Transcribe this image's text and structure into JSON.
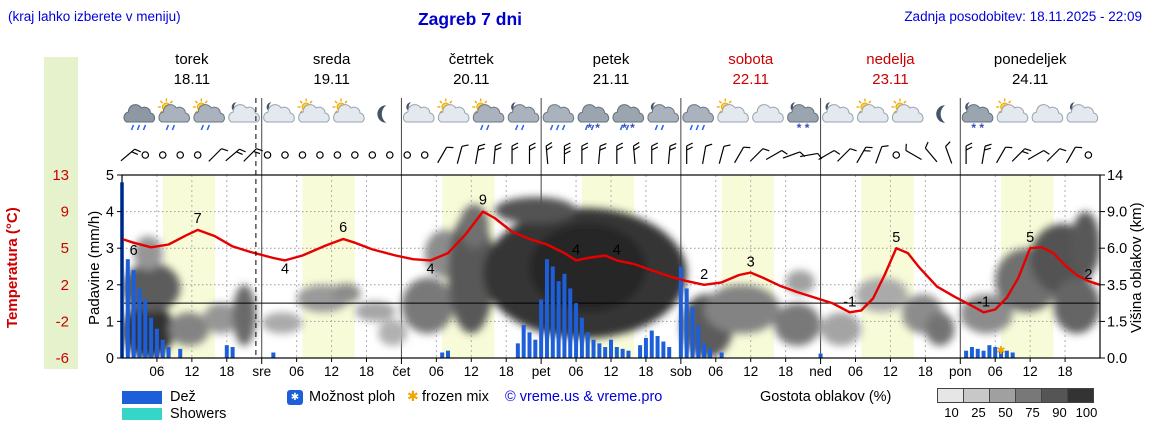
{
  "header": {
    "note": "(kraj lahko izberete v meniju)",
    "title": "Zagreb 7 dni",
    "updated": "Zadnja posodobitev: 18.11.2025 - 22:09"
  },
  "days": [
    {
      "name": "torek",
      "date": "18.11",
      "color": "#000000",
      "abbr": ""
    },
    {
      "name": "sreda",
      "date": "19.11",
      "color": "#000000",
      "abbr": "sre"
    },
    {
      "name": "četrtek",
      "date": "20.11",
      "color": "#000000",
      "abbr": "čet"
    },
    {
      "name": "petek",
      "date": "21.11",
      "color": "#000000",
      "abbr": "pet"
    },
    {
      "name": "sobota",
      "date": "22.11",
      "color": "#cc0000",
      "abbr": "sob"
    },
    {
      "name": "nedelja",
      "date": "23.11",
      "color": "#cc0000",
      "abbr": "ned"
    },
    {
      "name": "ponedeljek",
      "date": "24.11",
      "color": "#000000",
      "abbr": "pon"
    }
  ],
  "axes": {
    "temp_label": "Temperatura (°C)",
    "temp_ticks": [
      "13",
      "9",
      "5",
      "2",
      "-2",
      "-6"
    ],
    "precip_label": "Padavine (mm/h)",
    "precip_ticks": [
      "5",
      "4",
      "3",
      "2",
      "1",
      "0"
    ],
    "cloud_label": "Višina oblakov (km)",
    "cloud_ticks": [
      "14",
      "9.0",
      "6.0",
      "3.5",
      "1.5",
      "0.0"
    ],
    "hour_ticks": [
      "06",
      "12",
      "18"
    ]
  },
  "legend": {
    "rain": "Dež",
    "showers": "Showers",
    "chance": "Možnost ploh",
    "chance_icon": "✱",
    "frozen": "frozen mix",
    "frozen_icon": "✱",
    "copyright": "© vreme.us & vreme.pro",
    "cloud_density": "Gostota oblakov (%)",
    "density_labels": [
      "10",
      "25",
      "50",
      "75",
      "90",
      "100"
    ],
    "density_colors": [
      "#e6e6e6",
      "#c8c8c8",
      "#a0a0a0",
      "#787878",
      "#555555",
      "#333333"
    ]
  },
  "colors": {
    "accent_blue": "#0000cc",
    "temp_line": "#e60000",
    "rain": "#1d5fd9",
    "showers": "#35d6c8",
    "frozen": "#f0a500",
    "daylight_band": "#f8fbd8",
    "weekend_red": "#cc0000",
    "axis_band_green": "#e6f2cc"
  },
  "chart_data": {
    "type": "line",
    "subtype": "meteogram: temperature line + precipitation bars + cloud density shading",
    "title": "Zagreb 7 dni",
    "x_unit": "hours from 18.11 00:00 (7 days, 0–168 h)",
    "temp_axis_ticks": [
      13,
      9,
      5,
      2,
      -2,
      -6
    ],
    "precip_axis_ticks": [
      5,
      4,
      3,
      2,
      1,
      0
    ],
    "cloud_axis_ticks": [
      14,
      9,
      6,
      3.5,
      1.5,
      0
    ],
    "current_time_hour": 23,
    "daylight_bands": [
      [
        7,
        16
      ],
      [
        31,
        40
      ],
      [
        55,
        64
      ],
      [
        79,
        88
      ],
      [
        103,
        112
      ],
      [
        127,
        136
      ],
      [
        151,
        160
      ]
    ],
    "temperature": {
      "points": [
        [
          0,
          6
        ],
        [
          2,
          5.6
        ],
        [
          5,
          5.1
        ],
        [
          8,
          5.4
        ],
        [
          11,
          6.4
        ],
        [
          13,
          7
        ],
        [
          16,
          6.3
        ],
        [
          19,
          5.2
        ],
        [
          22,
          4.7
        ],
        [
          26,
          4.2
        ],
        [
          28,
          4
        ],
        [
          31,
          4.4
        ],
        [
          35,
          5.3
        ],
        [
          38,
          6
        ],
        [
          40,
          5.6
        ],
        [
          43,
          4.9
        ],
        [
          47,
          4.4
        ],
        [
          50,
          4.1
        ],
        [
          53,
          4
        ],
        [
          56,
          4.6
        ],
        [
          59,
          6.5
        ],
        [
          62,
          9
        ],
        [
          64,
          8.3
        ],
        [
          67,
          6.8
        ],
        [
          70,
          6
        ],
        [
          73,
          5.4
        ],
        [
          76,
          4.6
        ],
        [
          78,
          4
        ],
        [
          80,
          4.2
        ],
        [
          83,
          4.4
        ],
        [
          85,
          4
        ],
        [
          88,
          3.7
        ],
        [
          91,
          3.2
        ],
        [
          94,
          2.7
        ],
        [
          97,
          2.3
        ],
        [
          100,
          2
        ],
        [
          103,
          2.2
        ],
        [
          106,
          2.8
        ],
        [
          108,
          3
        ],
        [
          110,
          2.6
        ],
        [
          113,
          1.9
        ],
        [
          116,
          1.2
        ],
        [
          119,
          0.6
        ],
        [
          122,
          0
        ],
        [
          125,
          -1
        ],
        [
          127,
          -0.8
        ],
        [
          129,
          0.5
        ],
        [
          131,
          2.8
        ],
        [
          133,
          5
        ],
        [
          135,
          4.6
        ],
        [
          137,
          3.4
        ],
        [
          140,
          1.8
        ],
        [
          143,
          0.7
        ],
        [
          146,
          -0.3
        ],
        [
          148,
          -1
        ],
        [
          150,
          -0.7
        ],
        [
          152,
          0.6
        ],
        [
          154,
          2.6
        ],
        [
          156,
          5
        ],
        [
          158,
          5.1
        ],
        [
          160,
          4.6
        ],
        [
          162,
          3.6
        ],
        [
          164,
          2.8
        ],
        [
          166,
          2.3
        ],
        [
          168,
          2
        ]
      ],
      "labels": [
        [
          2,
          6,
          16
        ],
        [
          13,
          7,
          -7
        ],
        [
          28,
          4,
          13
        ],
        [
          38,
          6,
          -7
        ],
        [
          53,
          4,
          13
        ],
        [
          62,
          9,
          -7
        ],
        [
          78,
          4,
          -6
        ],
        [
          85,
          4,
          -6
        ],
        [
          100,
          2,
          -6
        ],
        [
          108,
          3,
          -6
        ],
        [
          125,
          -1,
          -6
        ],
        [
          133,
          5,
          -6
        ],
        [
          148,
          -1,
          -6
        ],
        [
          156,
          5,
          -6
        ],
        [
          166,
          2,
          -6
        ]
      ]
    },
    "precipitation_mm": [
      [
        0,
        4.8
      ],
      [
        1,
        2.7
      ],
      [
        2,
        2.4
      ],
      [
        3,
        1.9
      ],
      [
        4,
        1.6
      ],
      [
        5,
        1.1
      ],
      [
        6,
        0.8
      ],
      [
        7,
        0.5
      ],
      [
        8,
        0.3
      ],
      [
        10,
        0.25
      ],
      [
        18,
        0.35
      ],
      [
        19,
        0.3
      ],
      [
        26,
        0.15
      ],
      [
        55,
        0.15
      ],
      [
        56,
        0.2
      ],
      [
        68,
        0.4
      ],
      [
        69,
        0.9
      ],
      [
        70,
        0.7
      ],
      [
        71,
        0.5
      ],
      [
        72,
        1.6
      ],
      [
        73,
        2.7
      ],
      [
        74,
        2.5
      ],
      [
        75,
        2.1
      ],
      [
        76,
        2.3
      ],
      [
        77,
        1.9
      ],
      [
        78,
        1.5
      ],
      [
        79,
        1.1
      ],
      [
        80,
        0.7
      ],
      [
        81,
        0.5
      ],
      [
        82,
        0.4
      ],
      [
        83,
        0.3
      ],
      [
        84,
        0.5
      ],
      [
        85,
        0.3
      ],
      [
        86,
        0.25
      ],
      [
        87,
        0.2
      ],
      [
        89,
        0.35
      ],
      [
        90,
        0.55
      ],
      [
        91,
        0.75
      ],
      [
        92,
        0.6
      ],
      [
        93,
        0.45
      ],
      [
        94,
        0.3
      ],
      [
        96,
        2.5
      ],
      [
        97,
        1.9
      ],
      [
        98,
        1.4
      ],
      [
        99,
        0.9
      ],
      [
        100,
        0.4
      ],
      [
        101,
        0.25
      ],
      [
        103,
        0.15
      ],
      [
        120,
        0.12
      ],
      [
        145,
        0.2
      ],
      [
        146,
        0.3
      ],
      [
        147,
        0.25
      ],
      [
        148,
        0.2
      ],
      [
        149,
        0.35
      ],
      [
        150,
        0.3
      ],
      [
        151,
        0.25
      ],
      [
        152,
        0.2
      ],
      [
        153,
        0.15
      ]
    ],
    "frozen_mix_markers": [
      151
    ],
    "clouds": [
      {
        "h0": 0,
        "h1": 9,
        "k0": 0,
        "k1": 2.5,
        "d": 92
      },
      {
        "h0": 0,
        "h1": 10,
        "k0": 2,
        "k1": 5,
        "d": 70
      },
      {
        "h0": 2,
        "h1": 7,
        "k0": 4.5,
        "k1": 7,
        "d": 40
      },
      {
        "h0": 8,
        "h1": 15,
        "k0": 0.5,
        "k1": 2,
        "d": 50
      },
      {
        "h0": 14,
        "h1": 20,
        "k0": 1,
        "k1": 2.5,
        "d": 40
      },
      {
        "h0": 19,
        "h1": 23,
        "k0": 0.5,
        "k1": 3.5,
        "d": 62
      },
      {
        "h0": 24,
        "h1": 31,
        "k0": 1,
        "k1": 2,
        "d": 30
      },
      {
        "h0": 30,
        "h1": 39,
        "k0": 2,
        "k1": 3.5,
        "d": 38
      },
      {
        "h0": 36,
        "h1": 41,
        "k0": 2.5,
        "k1": 3.6,
        "d": 45
      },
      {
        "h0": 40,
        "h1": 47,
        "k0": 1.5,
        "k1": 2.6,
        "d": 32
      },
      {
        "h0": 44,
        "h1": 49,
        "k0": 0.5,
        "k1": 1.6,
        "d": 26
      },
      {
        "h0": 48,
        "h1": 57,
        "k0": 1,
        "k1": 4,
        "d": 55
      },
      {
        "h0": 52,
        "h1": 59,
        "k0": 4,
        "k1": 7.5,
        "d": 45
      },
      {
        "h0": 56,
        "h1": 64,
        "k0": 1,
        "k1": 9,
        "d": 72
      },
      {
        "h0": 58,
        "h1": 63,
        "k0": 6,
        "k1": 10,
        "d": 60
      },
      {
        "h0": 62,
        "h1": 97,
        "k0": 0.8,
        "k1": 9.5,
        "d": 90
      },
      {
        "h0": 64,
        "h1": 78,
        "k0": 8,
        "k1": 11,
        "d": 75
      },
      {
        "h0": 70,
        "h1": 90,
        "k0": 2,
        "k1": 8,
        "d": 97
      },
      {
        "h0": 96,
        "h1": 105,
        "k0": 0,
        "k1": 3,
        "d": 70
      },
      {
        "h0": 100,
        "h1": 113,
        "k0": 1,
        "k1": 3.5,
        "d": 50
      },
      {
        "h0": 112,
        "h1": 120,
        "k0": 0.5,
        "k1": 2.5,
        "d": 55
      },
      {
        "h0": 114,
        "h1": 119,
        "k0": 3,
        "k1": 4.5,
        "d": 35
      },
      {
        "h0": 120,
        "h1": 127,
        "k0": 0.5,
        "k1": 2,
        "d": 33
      },
      {
        "h0": 126,
        "h1": 135,
        "k0": 2,
        "k1": 4,
        "d": 30
      },
      {
        "h0": 134,
        "h1": 141,
        "k0": 1,
        "k1": 3,
        "d": 45
      },
      {
        "h0": 138,
        "h1": 143,
        "k0": 0.5,
        "k1": 2,
        "d": 58
      },
      {
        "h0": 144,
        "h1": 153,
        "k0": 1,
        "k1": 3,
        "d": 45
      },
      {
        "h0": 150,
        "h1": 161,
        "k0": 2,
        "k1": 6,
        "d": 60
      },
      {
        "h0": 156,
        "h1": 167,
        "k0": 3,
        "k1": 8,
        "d": 75
      },
      {
        "h0": 160,
        "h1": 168,
        "k0": 1,
        "k1": 4,
        "d": 65
      },
      {
        "h0": 163,
        "h1": 168,
        "k0": 4,
        "k1": 9,
        "d": 72
      }
    ],
    "icons": [
      "heavy-rain",
      "sun-rain",
      "sun-rain",
      "moon-cloud",
      "moon-cloud",
      "sun-cloud",
      "sun-cloud",
      "moon",
      "moon-cloud",
      "sun-cloud",
      "sun-rain",
      "moon-rain",
      "rain",
      "rain-snow",
      "rain-snow",
      "moon-rain",
      "rain",
      "sun-cloud",
      "cloud",
      "moon-snow",
      "moon-cloud",
      "sun-cloud",
      "sun-cloud",
      "moon",
      "moon-snow",
      "sun-cloud",
      "cloud",
      "moon-cloud"
    ],
    "wind": [
      [
        1,
        50,
        2
      ],
      [
        4,
        "c"
      ],
      [
        7,
        "c"
      ],
      [
        10,
        "c"
      ],
      [
        13,
        "c"
      ],
      [
        16,
        45,
        1
      ],
      [
        19,
        50,
        2
      ],
      [
        22,
        45,
        2
      ],
      [
        25,
        "c"
      ],
      [
        28,
        "c"
      ],
      [
        31,
        "c"
      ],
      [
        34,
        "c"
      ],
      [
        37,
        "c"
      ],
      [
        40,
        "c"
      ],
      [
        43,
        "c"
      ],
      [
        46,
        "c"
      ],
      [
        49,
        "c"
      ],
      [
        52,
        "c"
      ],
      [
        55,
        30,
        1
      ],
      [
        58,
        15,
        1
      ],
      [
        61,
        10,
        2
      ],
      [
        64,
        5,
        2
      ],
      [
        67,
        0,
        2
      ],
      [
        70,
        0,
        2
      ],
      [
        73,
        -5,
        2
      ],
      [
        76,
        0,
        3
      ],
      [
        79,
        0,
        2
      ],
      [
        82,
        5,
        2
      ],
      [
        85,
        0,
        2
      ],
      [
        88,
        -5,
        2
      ],
      [
        91,
        0,
        2
      ],
      [
        94,
        5,
        2
      ],
      [
        97,
        0,
        2
      ],
      [
        100,
        10,
        1
      ],
      [
        103,
        15,
        1
      ],
      [
        106,
        30,
        1
      ],
      [
        109,
        45,
        1
      ],
      [
        112,
        60,
        1
      ],
      [
        115,
        70,
        1
      ],
      [
        118,
        80,
        1
      ],
      [
        121,
        60,
        1
      ],
      [
        124,
        45,
        1
      ],
      [
        127,
        30,
        2
      ],
      [
        130,
        20,
        1
      ],
      [
        133,
        "c"
      ],
      [
        136,
        -60,
        1
      ],
      [
        139,
        -40,
        1
      ],
      [
        142,
        -20,
        1
      ],
      [
        145,
        0,
        2
      ],
      [
        148,
        10,
        2
      ],
      [
        151,
        30,
        1
      ],
      [
        154,
        45,
        2
      ],
      [
        157,
        60,
        1
      ],
      [
        160,
        45,
        1
      ],
      [
        163,
        30,
        1
      ],
      [
        166,
        "c"
      ]
    ]
  }
}
